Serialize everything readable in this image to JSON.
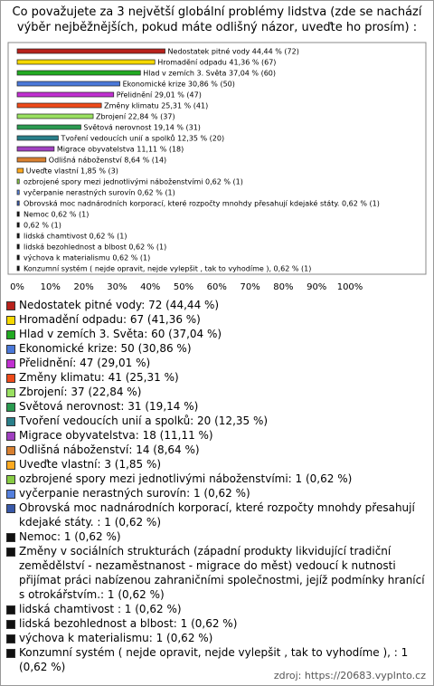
{
  "chart_data": {
    "type": "bar",
    "orientation": "horizontal",
    "title": "Co považujete za 3 největší globální problémy lidstva (zde se nachází výběr nejběžnějších, pokud máte odlišný názor, uveďte ho prosím) :",
    "values": [
      44.44,
      41.36,
      37.04,
      30.86,
      29.01,
      25.31,
      22.84,
      19.14,
      12.35,
      11.11,
      8.64,
      1.85,
      0.62,
      0.62,
      0.62,
      0.62,
      0.62,
      0.62,
      0.62,
      0.62,
      0.62
    ],
    "value_labels": [
      "Nedostatek pitné vody 44,44 % (72)",
      "Hromadění odpadu 41,36 % (67)",
      "Hlad v zemích 3. Světa 37,04 % (60)",
      "Ekonomické krize 30,86 % (50)",
      "Přelidnění 29,01 % (47)",
      "Změny klimatu 25,31 % (41)",
      "Zbrojení 22,84 % (37)",
      "Světová nerovnost 19,14 % (31)",
      "Tvoření vedoucích unií a spolků 12,35 % (20)",
      "Migrace obyvatelstva 11,11 % (18)",
      "Odlišná náboženství 8,64 % (14)",
      "Uveďte vlastní 1,85 % (3)",
      "ozbrojené spory mezi jednotlivými náboženstvími 0,62 % (1)",
      "vyčerpanie nerastných surovín 0,62 % (1)",
      "Obrovská moc nadnárodních korporací, které rozpočty mnohdy přesahují kdejaké státy.  0,62 % (1)",
      "Nemoc 0,62 % (1)",
      "0,62 % (1)",
      "lidská chamtivost  0,62 % (1)",
      "lidská bezohlednost a blbost 0,62 % (1)",
      "výchova k materialismu 0,62 % (1)",
      "Konzumní systém ( nejde opravit, nejde vylepšit , tak to vyhodíme ),  0,62 % (1)"
    ],
    "colors": [
      "#b8221c",
      "#f5d800",
      "#22aa22",
      "#4a78d8",
      "#c030d0",
      "#ee4a1a",
      "#99e060",
      "#2a9a50",
      "#2a7f8a",
      "#a040c0",
      "#d88030",
      "#ffaa20",
      "#88cc44",
      "#5580dd",
      "#3858a8",
      "#111111",
      "#111111",
      "#111111",
      "#111111",
      "#111111",
      "#111111"
    ],
    "legend": [
      "Nedostatek pitné vody: 72 (44,44 %)",
      "Hromadění odpadu: 67 (41,36 %)",
      "Hlad v zemích 3. Světa: 60 (37,04 %)",
      "Ekonomické krize: 50 (30,86 %)",
      "Přelidnění: 47 (29,01 %)",
      "Změny klimatu: 41 (25,31 %)",
      "Zbrojení: 37 (22,84 %)",
      "Světová nerovnost: 31 (19,14 %)",
      "Tvoření vedoucích unií a spolků: 20 (12,35 %)",
      "Migrace obyvatelstva: 18 (11,11 %)",
      "Odlišná náboženství: 14 (8,64 %)",
      "Uveďte vlastní: 3 (1,85 %)",
      "ozbrojené spory mezi jednotlivými náboženstvími: 1 (0,62 %)",
      "vyčerpanie nerastných surovín: 1 (0,62 %)",
      "Obrovská moc nadnárodních korporací, které rozpočty mnohdy přesahují kdejaké státy. : 1 (0,62 %)",
      "Nemoc: 1 (0,62 %)",
      "Změny v sociálních strukturách (západní produkty likvidující tradiční zemědělství - nezaměstnanost - migrace do měst) vedoucí k nutnosti přijímat práci nabízenou zahraničními společnostmi, jejíž podmínky hranící s otrokářstvím.: 1 (0,62 %)",
      "lidská chamtivost : 1 (0,62 %)",
      "lidská bezohlednost a blbost: 1 (0,62 %)",
      "výchova k materialismu: 1 (0,62 %)",
      "Konzumní systém ( nejde opravit, nejde vylepšit , tak to vyhodíme ), : 1 (0,62 %)"
    ],
    "xlim": [
      0,
      100
    ],
    "xticks": [
      {
        "value": 0,
        "label": "0%"
      },
      {
        "value": 10,
        "label": "10%"
      },
      {
        "value": 20,
        "label": "20%"
      },
      {
        "value": 30,
        "label": "30%"
      },
      {
        "value": 40,
        "label": "40%"
      },
      {
        "value": 50,
        "label": "50%"
      },
      {
        "value": 60,
        "label": "60%"
      },
      {
        "value": 70,
        "label": "70%"
      },
      {
        "value": 80,
        "label": "80%"
      },
      {
        "value": 90,
        "label": "90%"
      },
      {
        "value": 100,
        "label": "100%"
      }
    ],
    "grid": false,
    "source": "zdroj: https://20683.vyplnto.cz"
  }
}
